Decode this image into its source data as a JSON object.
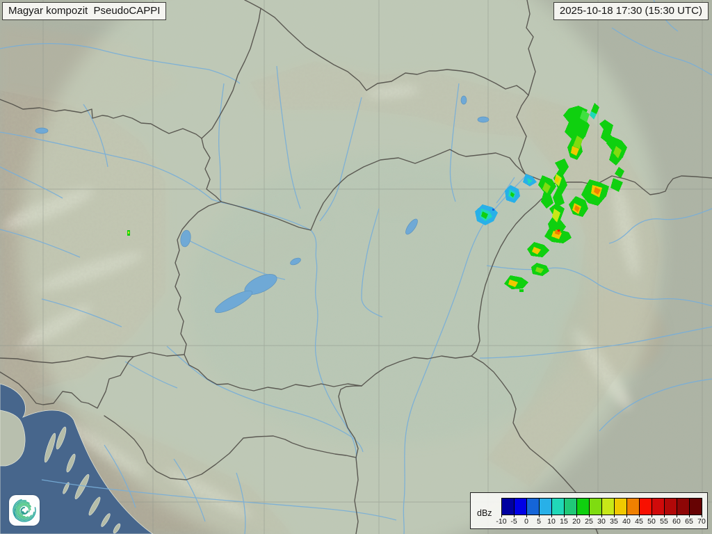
{
  "header": {
    "product_label": "Magyar kompozit  PseudoCAPPI",
    "timestamp_label": "2025-10-18 17:30 (15:30 UTC)"
  },
  "legend": {
    "unit": "dBz",
    "tick_labels": [
      "-10",
      "-5",
      "0",
      "5",
      "10",
      "15",
      "20",
      "25",
      "30",
      "35",
      "40",
      "45",
      "50",
      "55",
      "60",
      "65",
      "70"
    ],
    "colors": [
      "#0000a0",
      "#0000e6",
      "#1565d8",
      "#28b0e8",
      "#20d8b8",
      "#20c878",
      "#0fd00f",
      "#7fdc10",
      "#c8e818",
      "#f0c800",
      "#f08000",
      "#f81000",
      "#d00a0a",
      "#b20808",
      "#8e0606",
      "#660303"
    ]
  },
  "branding": {
    "logo_name": "hungaromet-spiral-logo"
  },
  "map_colors": {
    "terrain_base": "#b2b9ab",
    "coverage_wash": "#cfdcc6",
    "mountain_tan": "#c0b09a",
    "river_blue": "#78aed8",
    "sea_blue": "#47668c",
    "border_gray": "#53504a"
  }
}
